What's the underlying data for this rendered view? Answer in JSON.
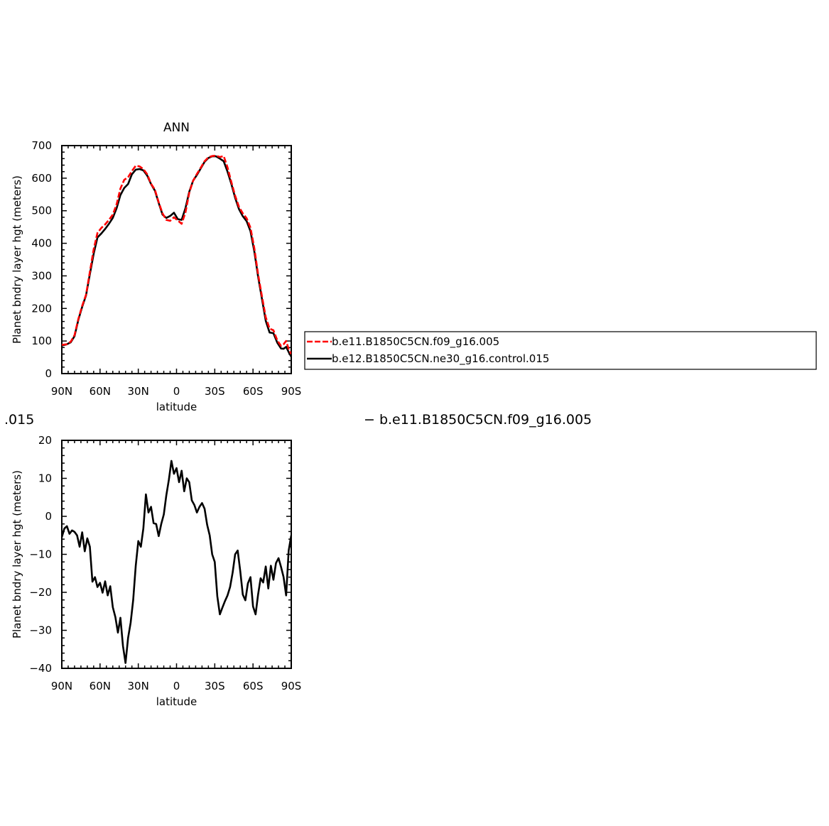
{
  "chart_data": [
    {
      "type": "line",
      "title": "ANN",
      "xlabel": "latitude",
      "ylabel": "Planet bndry layer hgt (meters)",
      "xlim": [
        90,
        -90
      ],
      "ylim": [
        0,
        700
      ],
      "xticks": [
        90,
        60,
        30,
        0,
        -30,
        -60,
        -90
      ],
      "xtick_labels": [
        "90N",
        "60N",
        "30N",
        "0",
        "30S",
        "60S",
        "90S"
      ],
      "yticks": [
        0,
        100,
        200,
        300,
        400,
        500,
        600,
        700
      ],
      "ytick_labels": [
        "0",
        "100",
        "200",
        "300",
        "400",
        "500",
        "600",
        "700"
      ],
      "legend": "right",
      "series": [
        {
          "name": "b.e11.B1850C5CN.f09_g16.005",
          "color": "#ff0000",
          "dash": "dashed",
          "x": [
            90,
            86,
            83,
            80,
            77,
            74,
            71,
            68,
            65,
            62,
            59,
            56,
            53,
            50,
            47,
            44,
            41,
            38,
            35,
            32,
            29,
            26,
            23,
            20,
            17,
            14,
            11,
            8,
            5,
            2,
            -1,
            -4,
            -7,
            -10,
            -13,
            -16,
            -19,
            -22,
            -25,
            -28,
            -31,
            -34,
            -37,
            -40,
            -43,
            -46,
            -49,
            -52,
            -55,
            -58,
            -61,
            -64,
            -67,
            -70,
            -73,
            -76,
            -79,
            -82,
            -84,
            -86,
            -88,
            -90
          ],
          "y": [
            88,
            90,
            98,
            118,
            168,
            208,
            242,
            312,
            382,
            432,
            447,
            458,
            472,
            488,
            520,
            568,
            595,
            603,
            622,
            638,
            636,
            628,
            612,
            583,
            565,
            526,
            492,
            472,
            469,
            480,
            470,
            460,
            495,
            555,
            592,
            613,
            632,
            652,
            664,
            668,
            669,
            665,
            668,
            633,
            588,
            546,
            512,
            492,
            477,
            448,
            385,
            305,
            238,
            173,
            138,
            133,
            102,
            85,
            90,
            100,
            75,
            60
          ]
        },
        {
          "name": "b.e12.B1850C5CN.ne30_g16.control.015",
          "color": "#000000",
          "dash": "solid",
          "x": [
            90,
            86,
            83,
            80,
            77,
            74,
            71,
            68,
            65,
            62,
            59,
            56,
            53,
            50,
            47,
            44,
            41,
            38,
            35,
            32,
            29,
            26,
            23,
            20,
            17,
            14,
            11,
            8,
            5,
            2,
            -1,
            -4,
            -7,
            -10,
            -13,
            -16,
            -19,
            -22,
            -25,
            -28,
            -31,
            -34,
            -37,
            -40,
            -43,
            -46,
            -49,
            -52,
            -55,
            -58,
            -61,
            -64,
            -67,
            -70,
            -73,
            -76,
            -79,
            -82,
            -84,
            -86,
            -88,
            -90
          ],
          "y": [
            86,
            90,
            96,
            115,
            165,
            205,
            240,
            305,
            368,
            418,
            430,
            444,
            460,
            478,
            508,
            548,
            570,
            582,
            612,
            626,
            628,
            624,
            608,
            582,
            562,
            524,
            488,
            478,
            484,
            494,
            474,
            472,
            508,
            558,
            592,
            610,
            630,
            650,
            662,
            667,
            667,
            660,
            652,
            620,
            582,
            540,
            505,
            483,
            468,
            437,
            375,
            298,
            230,
            162,
            126,
            124,
            95,
            77,
            76,
            82,
            66,
            52
          ]
        }
      ]
    },
    {
      "type": "line",
      "title": "",
      "xlabel": "latitude",
      "ylabel": "Planet bndry layer hgt (meters)",
      "xlim": [
        90,
        -90
      ],
      "ylim": [
        -40,
        20
      ],
      "xticks": [
        90,
        60,
        30,
        0,
        -30,
        -60,
        -90
      ],
      "xtick_labels": [
        "90N",
        "60N",
        "30N",
        "0",
        "30S",
        "60S",
        "90S"
      ],
      "yticks": [
        -40,
        -30,
        -20,
        -10,
        0,
        10,
        20
      ],
      "ytick_labels": [
        "−40",
        "−30",
        "−20",
        "−10",
        "0",
        "10",
        "20"
      ],
      "series": [
        {
          "name": "",
          "color": "#000000",
          "dash": "solid",
          "x": [
            90,
            88,
            86,
            84,
            82,
            80,
            78,
            76,
            74,
            72,
            70,
            68,
            66,
            64,
            62,
            60,
            58,
            56,
            54,
            52,
            50,
            48,
            46,
            44,
            42,
            40,
            38,
            36,
            34,
            32,
            30,
            28,
            26,
            24,
            22,
            20,
            18,
            16,
            14,
            12,
            10,
            8,
            6,
            4,
            2,
            0,
            -2,
            -4,
            -6,
            -8,
            -10,
            -12,
            -14,
            -16,
            -18,
            -20,
            -22,
            -24,
            -26,
            -28,
            -30,
            -32,
            -34,
            -36,
            -38,
            -40,
            -42,
            -44,
            -46,
            -48,
            -50,
            -52,
            -54,
            -56,
            -58,
            -60,
            -62,
            -64,
            -66,
            -68,
            -70,
            -72,
            -74,
            -76,
            -78,
            -80,
            -82,
            -84,
            -86,
            -88,
            -90
          ],
          "y": [
            -5.5,
            -3.2,
            -2.6,
            -4.6,
            -3.7,
            -4.1,
            -5.0,
            -8.0,
            -4.2,
            -9.2,
            -5.8,
            -8.0,
            -17.2,
            -16.0,
            -18.6,
            -17.5,
            -20.1,
            -17.1,
            -20.8,
            -18.4,
            -23.9,
            -26.5,
            -30.6,
            -26.7,
            -34.1,
            -38.6,
            -32.0,
            -28.0,
            -22.0,
            -13.0,
            -6.5,
            -8.0,
            -3.2,
            5.8,
            1.0,
            2.5,
            -1.8,
            -2.0,
            -5.2,
            -2.0,
            0.5,
            5.5,
            9.6,
            14.6,
            11.2,
            12.7,
            9.0,
            12.0,
            6.6,
            10.0,
            9.0,
            4.2,
            3.0,
            1.0,
            2.5,
            3.5,
            2.0,
            -2.2,
            -5.0,
            -10.0,
            -12.0,
            -21.0,
            -25.8,
            -24.0,
            -22.3,
            -20.8,
            -18.6,
            -14.8,
            -10.0,
            -9.0,
            -14.4,
            -20.6,
            -22.1,
            -17.6,
            -16.0,
            -23.7,
            -25.8,
            -20.6,
            -16.3,
            -17.4,
            -13.2,
            -19.0,
            -13.0,
            -16.7,
            -12.3,
            -11.0,
            -13.3,
            -16.0,
            -20.8,
            -9.0,
            -5.0
          ]
        }
      ]
    }
  ],
  "overflow_left_text": ".015",
  "overflow_right_text": "− b.e11.B1850C5CN.f09_g16.005"
}
